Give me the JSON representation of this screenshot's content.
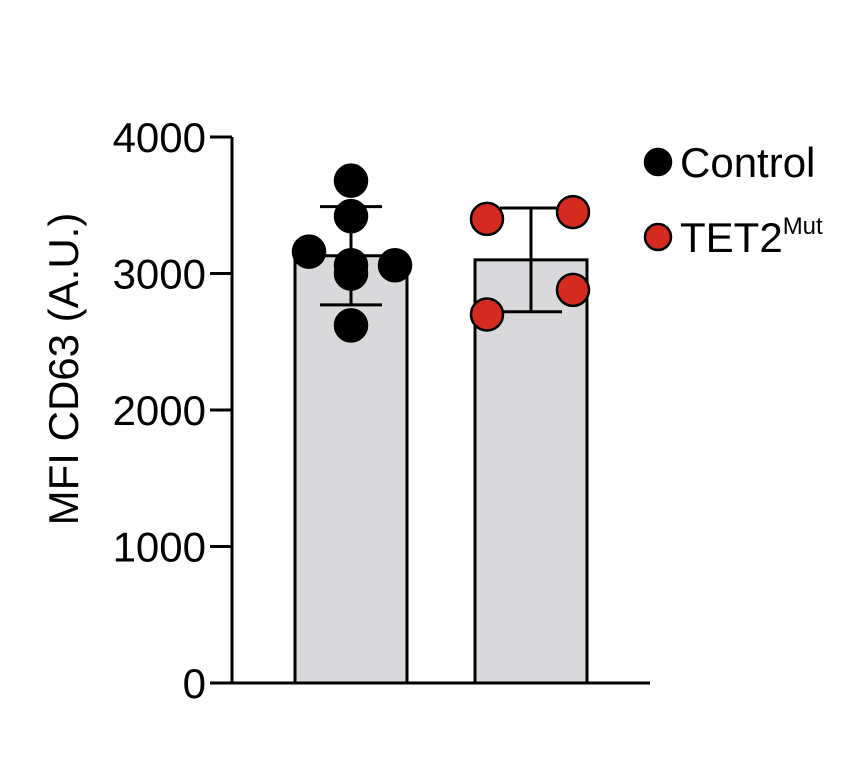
{
  "chart_data": {
    "type": "bar",
    "ylabel": "MFI CD63 (A.U.)",
    "ylim": [
      0,
      4000
    ],
    "yticks": [
      0,
      1000,
      2000,
      3000,
      4000
    ],
    "grid": false,
    "legend_position": "top-right",
    "series": [
      {
        "name": "Control",
        "legend_label": "Control",
        "legend_sup": "",
        "color": "#000000",
        "bar_color": "#d9d9db",
        "mean": 3130,
        "error": 360,
        "points": [
          3680,
          3420,
          3160,
          3060,
          3000,
          2620,
          3060
        ]
      },
      {
        "name": "TET2Mut",
        "legend_label": "TET2",
        "legend_sup": "Mut",
        "color": "#d42a20",
        "bar_color": "#d9d9db",
        "mean": 3100,
        "error": 380,
        "points": [
          3400,
          3450,
          2880,
          2700
        ]
      }
    ]
  }
}
